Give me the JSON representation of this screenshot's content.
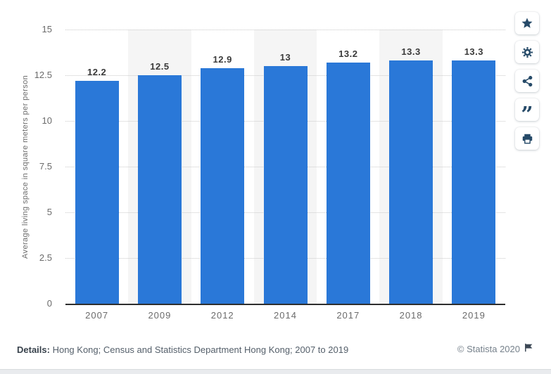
{
  "chart_data": {
    "type": "bar",
    "categories": [
      "2007",
      "2009",
      "2012",
      "2014",
      "2017",
      "2018",
      "2019"
    ],
    "values": [
      12.2,
      12.5,
      12.9,
      13,
      13.2,
      13.3,
      13.3
    ],
    "value_labels": [
      "12.2",
      "12.5",
      "12.9",
      "13",
      "13.2",
      "13.3",
      "13.3"
    ],
    "title": "",
    "xlabel": "",
    "ylabel": "Average living space in square meters per person",
    "ylim": [
      0,
      15
    ],
    "yticks": [
      0,
      2.5,
      5,
      7.5,
      10,
      12.5,
      15
    ],
    "ytick_labels": [
      "0",
      "2.5",
      "5",
      "7.5",
      "10",
      "12.5",
      "15"
    ],
    "grid": "horizontal-dotted",
    "legend": "none",
    "bar_color": "#2a78d8",
    "band_color": "#f5f5f5",
    "banded_categories": [
      "2009",
      "2014",
      "2018"
    ]
  },
  "toolbar": {
    "buttons": [
      {
        "name": "favorite",
        "icon": "star-icon"
      },
      {
        "name": "settings",
        "icon": "gear-icon"
      },
      {
        "name": "share",
        "icon": "share-icon"
      },
      {
        "name": "cite",
        "icon": "quote-icon"
      },
      {
        "name": "print",
        "icon": "print-icon"
      }
    ]
  },
  "footer": {
    "details_label": "Details:",
    "details_text": " Hong Kong; Census and Statistics Department Hong Kong; 2007 to 2019",
    "copyright": "© Statista 2020"
  }
}
